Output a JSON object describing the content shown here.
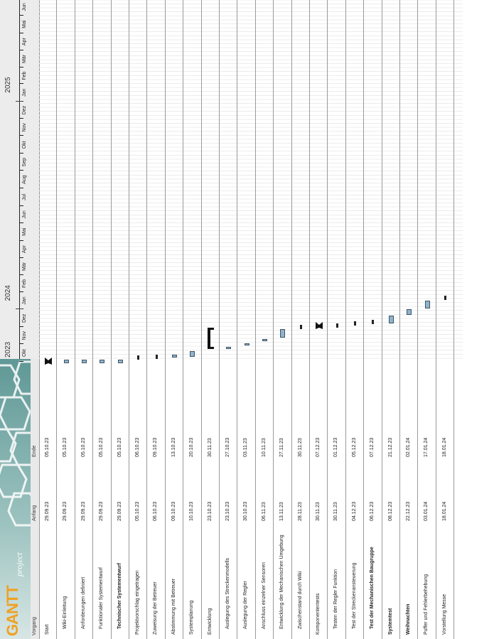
{
  "logo": {
    "text": "GANTT",
    "sub": "project"
  },
  "columns": {
    "task": "Vorgang",
    "start": "Anfang",
    "end": "Ende"
  },
  "timeline": {
    "years": [
      "2023",
      "2024",
      "2025"
    ],
    "months": [
      "Okt",
      "Nov",
      "Dez",
      "Jan",
      "Feb",
      "Mär",
      "Apr",
      "Mai",
      "Jun",
      "Jul",
      "Aug",
      "Sep",
      "Okt",
      "Nov",
      "Dez",
      "Jan",
      "Feb",
      "Mär",
      "Apr",
      "Mai",
      "Jun"
    ]
  },
  "colors": {
    "bar": "#8fb3cc",
    "bar_border": "#3f5566",
    "milestone": "#111111",
    "logo_teal": "#5f9896"
  },
  "tasks": [
    {
      "name": "Start",
      "start": "29.09.23",
      "end": "05.10.23",
      "indent": 0,
      "type": "milestone"
    },
    {
      "name": "Wiki-Einleitung",
      "start": "29.09.23",
      "end": "05.10.23",
      "indent": 1,
      "type": "task"
    },
    {
      "name": "Anforderungen definiert",
      "start": "29.09.23",
      "end": "05.10.23",
      "indent": 1,
      "type": "task"
    },
    {
      "name": "Funktionaler Systementwurf",
      "start": "29.09.23",
      "end": "05.10.23",
      "indent": 1,
      "type": "task"
    },
    {
      "name": "Technischer Systementwurf",
      "start": "29.09.23",
      "end": "05.10.23",
      "indent": 1,
      "type": "task",
      "bold": true
    },
    {
      "name": "Projektvorschlag eingetragen",
      "start": "05.10.23",
      "end": "06.10.23",
      "indent": 0,
      "type": "task"
    },
    {
      "name": "Zuweisung der Betreuer",
      "start": "06.10.23",
      "end": "09.10.23",
      "indent": 0,
      "type": "task"
    },
    {
      "name": "Abstimmung mit Betreuer",
      "start": "09.10.23",
      "end": "13.10.23",
      "indent": 0,
      "type": "task"
    },
    {
      "name": "Systemplanung",
      "start": "10.10.23",
      "end": "20.10.23",
      "indent": 0,
      "type": "task"
    },
    {
      "name": "Entwicklung",
      "start": "23.10.23",
      "end": "30.11.23",
      "indent": 0,
      "type": "summary"
    },
    {
      "name": "Auslegung des Streckenmodells",
      "start": "23.10.23",
      "end": "27.10.23",
      "indent": 1,
      "type": "task"
    },
    {
      "name": "Auslegung der Regler",
      "start": "30.10.23",
      "end": "03.11.23",
      "indent": 1,
      "type": "task"
    },
    {
      "name": "Anschluss einzelner Sensoren",
      "start": "06.11.23",
      "end": "10.11.23",
      "indent": 1,
      "type": "task"
    },
    {
      "name": "Entwicklung der Mechanischen Umgebung",
      "start": "13.11.23",
      "end": "27.11.23",
      "indent": 1,
      "type": "task"
    },
    {
      "name": "Zwischenstand durch Wiki",
      "start": "28.11.23",
      "end": "30.11.23",
      "indent": 1,
      "type": "task"
    },
    {
      "name": "Komponententests",
      "start": "30.11.23",
      "end": "07.12.23",
      "indent": 0,
      "type": "milestone"
    },
    {
      "name": "Testen der Regler Funktion",
      "start": "30.11.23",
      "end": "01.12.23",
      "indent": 1,
      "type": "task"
    },
    {
      "name": "Test der Streckenansteuerung",
      "start": "04.12.23",
      "end": "05.12.23",
      "indent": 1,
      "type": "task"
    },
    {
      "name": "Test der Mechanischen Baugruppe",
      "start": "06.12.23",
      "end": "07.12.23",
      "indent": 1,
      "type": "task",
      "bold": true
    },
    {
      "name": "Systemtest",
      "start": "08.12.23",
      "end": "21.12.23",
      "indent": 0,
      "type": "task",
      "bold": true
    },
    {
      "name": "Weihnachten",
      "start": "22.12.23",
      "end": "02.01.24",
      "indent": 0,
      "type": "task",
      "bold": true
    },
    {
      "name": "Puffer und Fehlerbehebung",
      "start": "03.01.24",
      "end": "17.01.24",
      "indent": 0,
      "type": "task"
    },
    {
      "name": "Vorstellung Messe",
      "start": "18.01.24",
      "end": "18.01.24",
      "indent": 0,
      "type": "task"
    }
  ]
}
